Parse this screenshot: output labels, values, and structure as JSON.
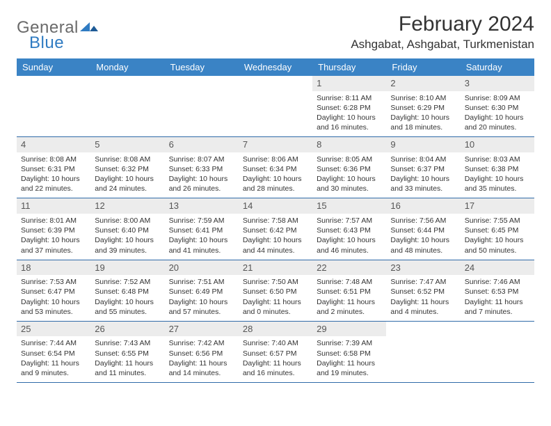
{
  "brand": {
    "general": "General",
    "blue": "Blue"
  },
  "title": "February 2024",
  "location": "Ashgabat, Ashgabat, Turkmenistan",
  "colors": {
    "header_bg": "#3a83c5",
    "header_text": "#ffffff",
    "border": "#2f6aa8",
    "daynum_bg": "#ececec",
    "text": "#333333",
    "logo_gray": "#6a6a6a",
    "logo_blue": "#2f7bc2"
  },
  "day_headers": [
    "Sunday",
    "Monday",
    "Tuesday",
    "Wednesday",
    "Thursday",
    "Friday",
    "Saturday"
  ],
  "weeks": [
    [
      null,
      null,
      null,
      null,
      {
        "n": "1",
        "sr": "8:11 AM",
        "ss": "6:28 PM",
        "dl": "10 hours and 16 minutes."
      },
      {
        "n": "2",
        "sr": "8:10 AM",
        "ss": "6:29 PM",
        "dl": "10 hours and 18 minutes."
      },
      {
        "n": "3",
        "sr": "8:09 AM",
        "ss": "6:30 PM",
        "dl": "10 hours and 20 minutes."
      }
    ],
    [
      {
        "n": "4",
        "sr": "8:08 AM",
        "ss": "6:31 PM",
        "dl": "10 hours and 22 minutes."
      },
      {
        "n": "5",
        "sr": "8:08 AM",
        "ss": "6:32 PM",
        "dl": "10 hours and 24 minutes."
      },
      {
        "n": "6",
        "sr": "8:07 AM",
        "ss": "6:33 PM",
        "dl": "10 hours and 26 minutes."
      },
      {
        "n": "7",
        "sr": "8:06 AM",
        "ss": "6:34 PM",
        "dl": "10 hours and 28 minutes."
      },
      {
        "n": "8",
        "sr": "8:05 AM",
        "ss": "6:36 PM",
        "dl": "10 hours and 30 minutes."
      },
      {
        "n": "9",
        "sr": "8:04 AM",
        "ss": "6:37 PM",
        "dl": "10 hours and 33 minutes."
      },
      {
        "n": "10",
        "sr": "8:03 AM",
        "ss": "6:38 PM",
        "dl": "10 hours and 35 minutes."
      }
    ],
    [
      {
        "n": "11",
        "sr": "8:01 AM",
        "ss": "6:39 PM",
        "dl": "10 hours and 37 minutes."
      },
      {
        "n": "12",
        "sr": "8:00 AM",
        "ss": "6:40 PM",
        "dl": "10 hours and 39 minutes."
      },
      {
        "n": "13",
        "sr": "7:59 AM",
        "ss": "6:41 PM",
        "dl": "10 hours and 41 minutes."
      },
      {
        "n": "14",
        "sr": "7:58 AM",
        "ss": "6:42 PM",
        "dl": "10 hours and 44 minutes."
      },
      {
        "n": "15",
        "sr": "7:57 AM",
        "ss": "6:43 PM",
        "dl": "10 hours and 46 minutes."
      },
      {
        "n": "16",
        "sr": "7:56 AM",
        "ss": "6:44 PM",
        "dl": "10 hours and 48 minutes."
      },
      {
        "n": "17",
        "sr": "7:55 AM",
        "ss": "6:45 PM",
        "dl": "10 hours and 50 minutes."
      }
    ],
    [
      {
        "n": "18",
        "sr": "7:53 AM",
        "ss": "6:47 PM",
        "dl": "10 hours and 53 minutes."
      },
      {
        "n": "19",
        "sr": "7:52 AM",
        "ss": "6:48 PM",
        "dl": "10 hours and 55 minutes."
      },
      {
        "n": "20",
        "sr": "7:51 AM",
        "ss": "6:49 PM",
        "dl": "10 hours and 57 minutes."
      },
      {
        "n": "21",
        "sr": "7:50 AM",
        "ss": "6:50 PM",
        "dl": "11 hours and 0 minutes."
      },
      {
        "n": "22",
        "sr": "7:48 AM",
        "ss": "6:51 PM",
        "dl": "11 hours and 2 minutes."
      },
      {
        "n": "23",
        "sr": "7:47 AM",
        "ss": "6:52 PM",
        "dl": "11 hours and 4 minutes."
      },
      {
        "n": "24",
        "sr": "7:46 AM",
        "ss": "6:53 PM",
        "dl": "11 hours and 7 minutes."
      }
    ],
    [
      {
        "n": "25",
        "sr": "7:44 AM",
        "ss": "6:54 PM",
        "dl": "11 hours and 9 minutes."
      },
      {
        "n": "26",
        "sr": "7:43 AM",
        "ss": "6:55 PM",
        "dl": "11 hours and 11 minutes."
      },
      {
        "n": "27",
        "sr": "7:42 AM",
        "ss": "6:56 PM",
        "dl": "11 hours and 14 minutes."
      },
      {
        "n": "28",
        "sr": "7:40 AM",
        "ss": "6:57 PM",
        "dl": "11 hours and 16 minutes."
      },
      {
        "n": "29",
        "sr": "7:39 AM",
        "ss": "6:58 PM",
        "dl": "11 hours and 19 minutes."
      },
      null,
      null
    ]
  ],
  "labels": {
    "sunrise": "Sunrise: ",
    "sunset": "Sunset: ",
    "daylight": "Daylight: "
  }
}
